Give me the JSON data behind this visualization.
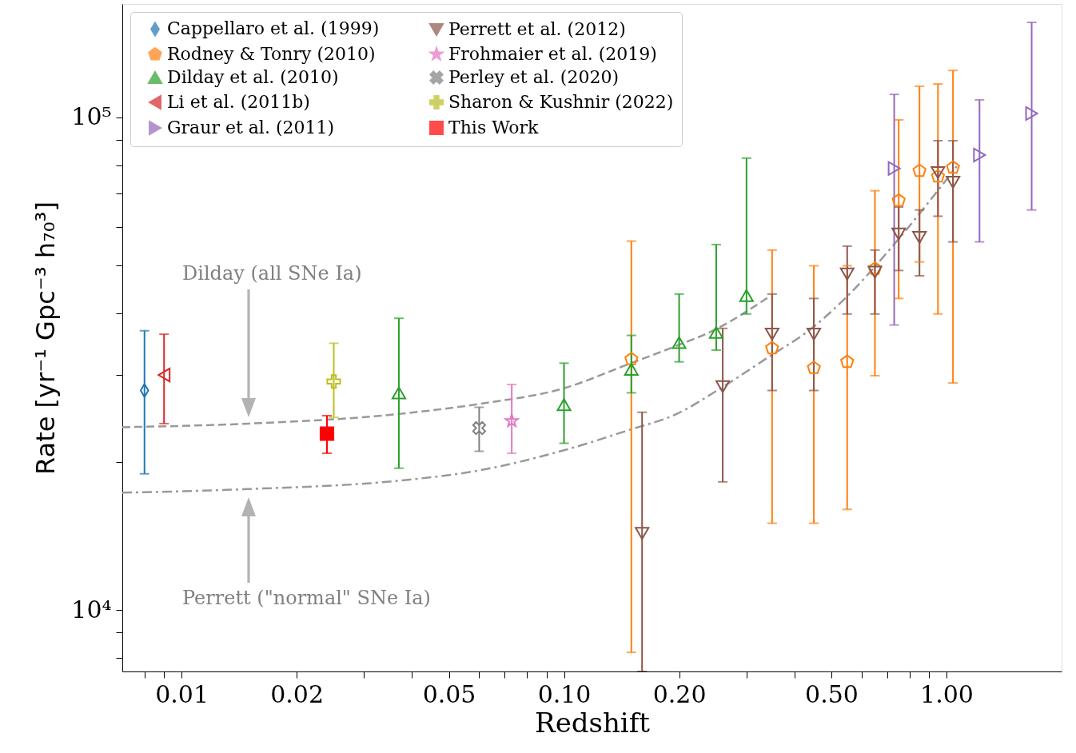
{
  "chart_data": {
    "type": "scatter",
    "xlabel": "Redshift",
    "ylabel": "Rate [yr⁻¹ Gpc⁻³ h₇₀³]",
    "log": "xy",
    "xlim": [
      0.007,
      2
    ],
    "ylim": [
      7500,
      170000
    ],
    "xticks": [
      {
        "value": 0.008,
        "label": null
      },
      {
        "value": 0.009,
        "label": null
      },
      0.01,
      0.02,
      {
        "value": 0.03,
        "label": null
      },
      {
        "value": 0.04,
        "label": null
      },
      0.05,
      {
        "value": 0.06,
        "label": null
      },
      {
        "value": 0.07,
        "label": null
      },
      {
        "value": 0.08,
        "label": null
      },
      {
        "value": 0.09,
        "label": null
      },
      {
        "value": 0.1,
        "label": "0.10"
      },
      {
        "value": 0.2,
        "label": "0.20"
      },
      {
        "value": 0.3,
        "label": null
      },
      {
        "value": 0.4,
        "label": null
      },
      {
        "value": 0.5,
        "label": "0.50"
      },
      {
        "value": 0.6,
        "label": null
      },
      {
        "value": 0.7,
        "label": null
      },
      {
        "value": 0.8,
        "label": null
      },
      {
        "value": 0.9,
        "label": null
      },
      {
        "value": 1,
        "label": "1.00"
      }
    ],
    "yticks": [
      {
        "value": 8000,
        "label": null
      },
      {
        "value": 9000,
        "label": null
      },
      {
        "value": 10000,
        "label": "10⁴"
      },
      {
        "value": 20000,
        "label": null
      },
      {
        "value": 30000,
        "label": null
      },
      {
        "value": 40000,
        "label": null
      },
      {
        "value": 50000,
        "label": null
      },
      {
        "value": 60000,
        "label": null
      },
      {
        "value": 70000,
        "label": null
      },
      {
        "value": 80000,
        "label": null
      },
      {
        "value": 90000,
        "label": null
      },
      {
        "value": 100000,
        "label": "10⁵"
      }
    ],
    "grid": false,
    "legend": "top left",
    "annotations": [
      "Dilday (all SNe Ia)",
      "Perrett (\"normal\" SNe Ia)"
    ],
    "series": [
      {
        "name": "Cappellaro et al. (1999)",
        "marker": "diamond",
        "color": "#1f77b4",
        "x": [
          0.008
        ],
        "values": [
          27900
        ],
        "errors": [
          [
            18900,
            36900
          ]
        ]
      },
      {
        "name": "Rodney & Tonry (2010)",
        "color": "#ff7f0e",
        "x": [
          0.15,
          0.35,
          0.45,
          0.55,
          0.65,
          0.75,
          0.85,
          0.95,
          1.04
        ],
        "values": [
          32300,
          34000,
          31000,
          31900,
          49300,
          67800,
          77900,
          75900,
          79100
        ],
        "errors": [
          [
            8200,
            56100
          ],
          [
            15000,
            53800
          ],
          [
            15000,
            50000
          ],
          [
            16000,
            50000
          ],
          [
            29900,
            71000
          ],
          [
            42900,
            98900
          ],
          [
            50900,
            115700
          ],
          [
            39900,
            117000
          ],
          [
            28900,
            124600
          ]
        ]
      },
      {
        "name": "Dilday et al. (2010)",
        "marker": "triangle-up",
        "color": "#2ca02c",
        "x": [
          0.037,
          0.1,
          0.15,
          0.2,
          0.25,
          0.3
        ],
        "values": [
          27600,
          26100,
          30800,
          34900,
          36600,
          43500
        ],
        "errors": [
          [
            19400,
            39100
          ],
          [
            21800,
            31700
          ],
          [
            27600,
            36100
          ],
          [
            31900,
            43800
          ],
          [
            33700,
            55200
          ],
          [
            39900,
            82700
          ]
        ]
      },
      {
        "name": "Li et al. (2011b)",
        "marker": "triangle-left",
        "color": "#d62728",
        "x": [
          0.009
        ],
        "values": [
          30000
        ],
        "errors": [
          [
            23900,
            36300
          ]
        ]
      },
      {
        "name": "Graur et al. (2011)",
        "marker": "triangle-right",
        "color": "#9467bd",
        "x": [
          0.73,
          1.22,
          1.67
        ],
        "values": [
          78800,
          83900,
          101900
        ],
        "errors": [
          [
            37900,
            111400
          ],
          [
            55900,
            108600
          ],
          [
            64900,
            156000
          ]
        ]
      },
      {
        "name": "Perrett et al. (2012)",
        "marker": "triangle-down",
        "color": "#8c564b",
        "x": [
          0.16,
          0.26,
          0.35,
          0.45,
          0.55,
          0.65,
          0.75,
          0.85,
          0.95,
          1.04
        ],
        "values": [
          14300,
          28400,
          36300,
          36300,
          48100,
          48500,
          58000,
          57100,
          77300,
          73900
        ],
        "errors": [
          [
            7500,
            25200
          ],
          [
            18200,
            37300
          ],
          [
            27900,
            43800
          ],
          [
            27900,
            42900
          ],
          [
            39900,
            54800
          ],
          [
            39900,
            53800
          ],
          [
            48900,
            65800
          ],
          [
            47700,
            64900
          ],
          [
            63000,
            89700
          ],
          [
            55900,
            89700
          ]
        ]
      },
      {
        "name": "Frohmaier et al. (2019)",
        "marker": "star",
        "color": "#e377c2",
        "x": [
          0.073
        ],
        "values": [
          24200
        ],
        "errors": [
          [
            20800,
            28700
          ]
        ]
      },
      {
        "name": "Perley et al. (2020)",
        "marker": "cross",
        "color": "#7f7f7f",
        "x": [
          0.06
        ],
        "values": [
          23400
        ],
        "errors": [
          [
            21000,
            25800
          ]
        ]
      },
      {
        "name": "Sharon & Kushnir (2022)",
        "marker": "plus",
        "color": "#bcbd22",
        "x": [
          0.025
        ],
        "values": [
          29100
        ],
        "errors": [
          [
            24600,
            34800
          ]
        ]
      },
      {
        "name": "This Work",
        "marker": "square",
        "color": "#ff0000",
        "x": [
          0.024
        ],
        "values": [
          22800
        ],
        "errors": [
          [
            20800,
            24800
          ]
        ]
      },
      {
        "type": "line",
        "line_style": "dashed",
        "color": "#999999",
        "x": [
          0.007,
          0.015,
          0.037,
          0.06,
          0.1,
          0.148,
          0.197,
          0.245,
          0.34
        ],
        "values": [
          23500,
          23900,
          25000,
          26200,
          28200,
          31600,
          34400,
          36900,
          43000
        ]
      },
      {
        "type": "line",
        "line_style": "dashdot",
        "color": "#999999",
        "x": [
          0.007,
          0.015,
          0.037,
          0.06,
          0.1,
          0.148,
          0.197,
          0.255,
          0.34,
          0.442,
          0.543,
          0.736,
          1.064
        ],
        "values": [
          17300,
          17600,
          18300,
          19200,
          21100,
          23200,
          25000,
          28100,
          32500,
          37200,
          42900,
          55700,
          79600
        ]
      }
    ]
  }
}
